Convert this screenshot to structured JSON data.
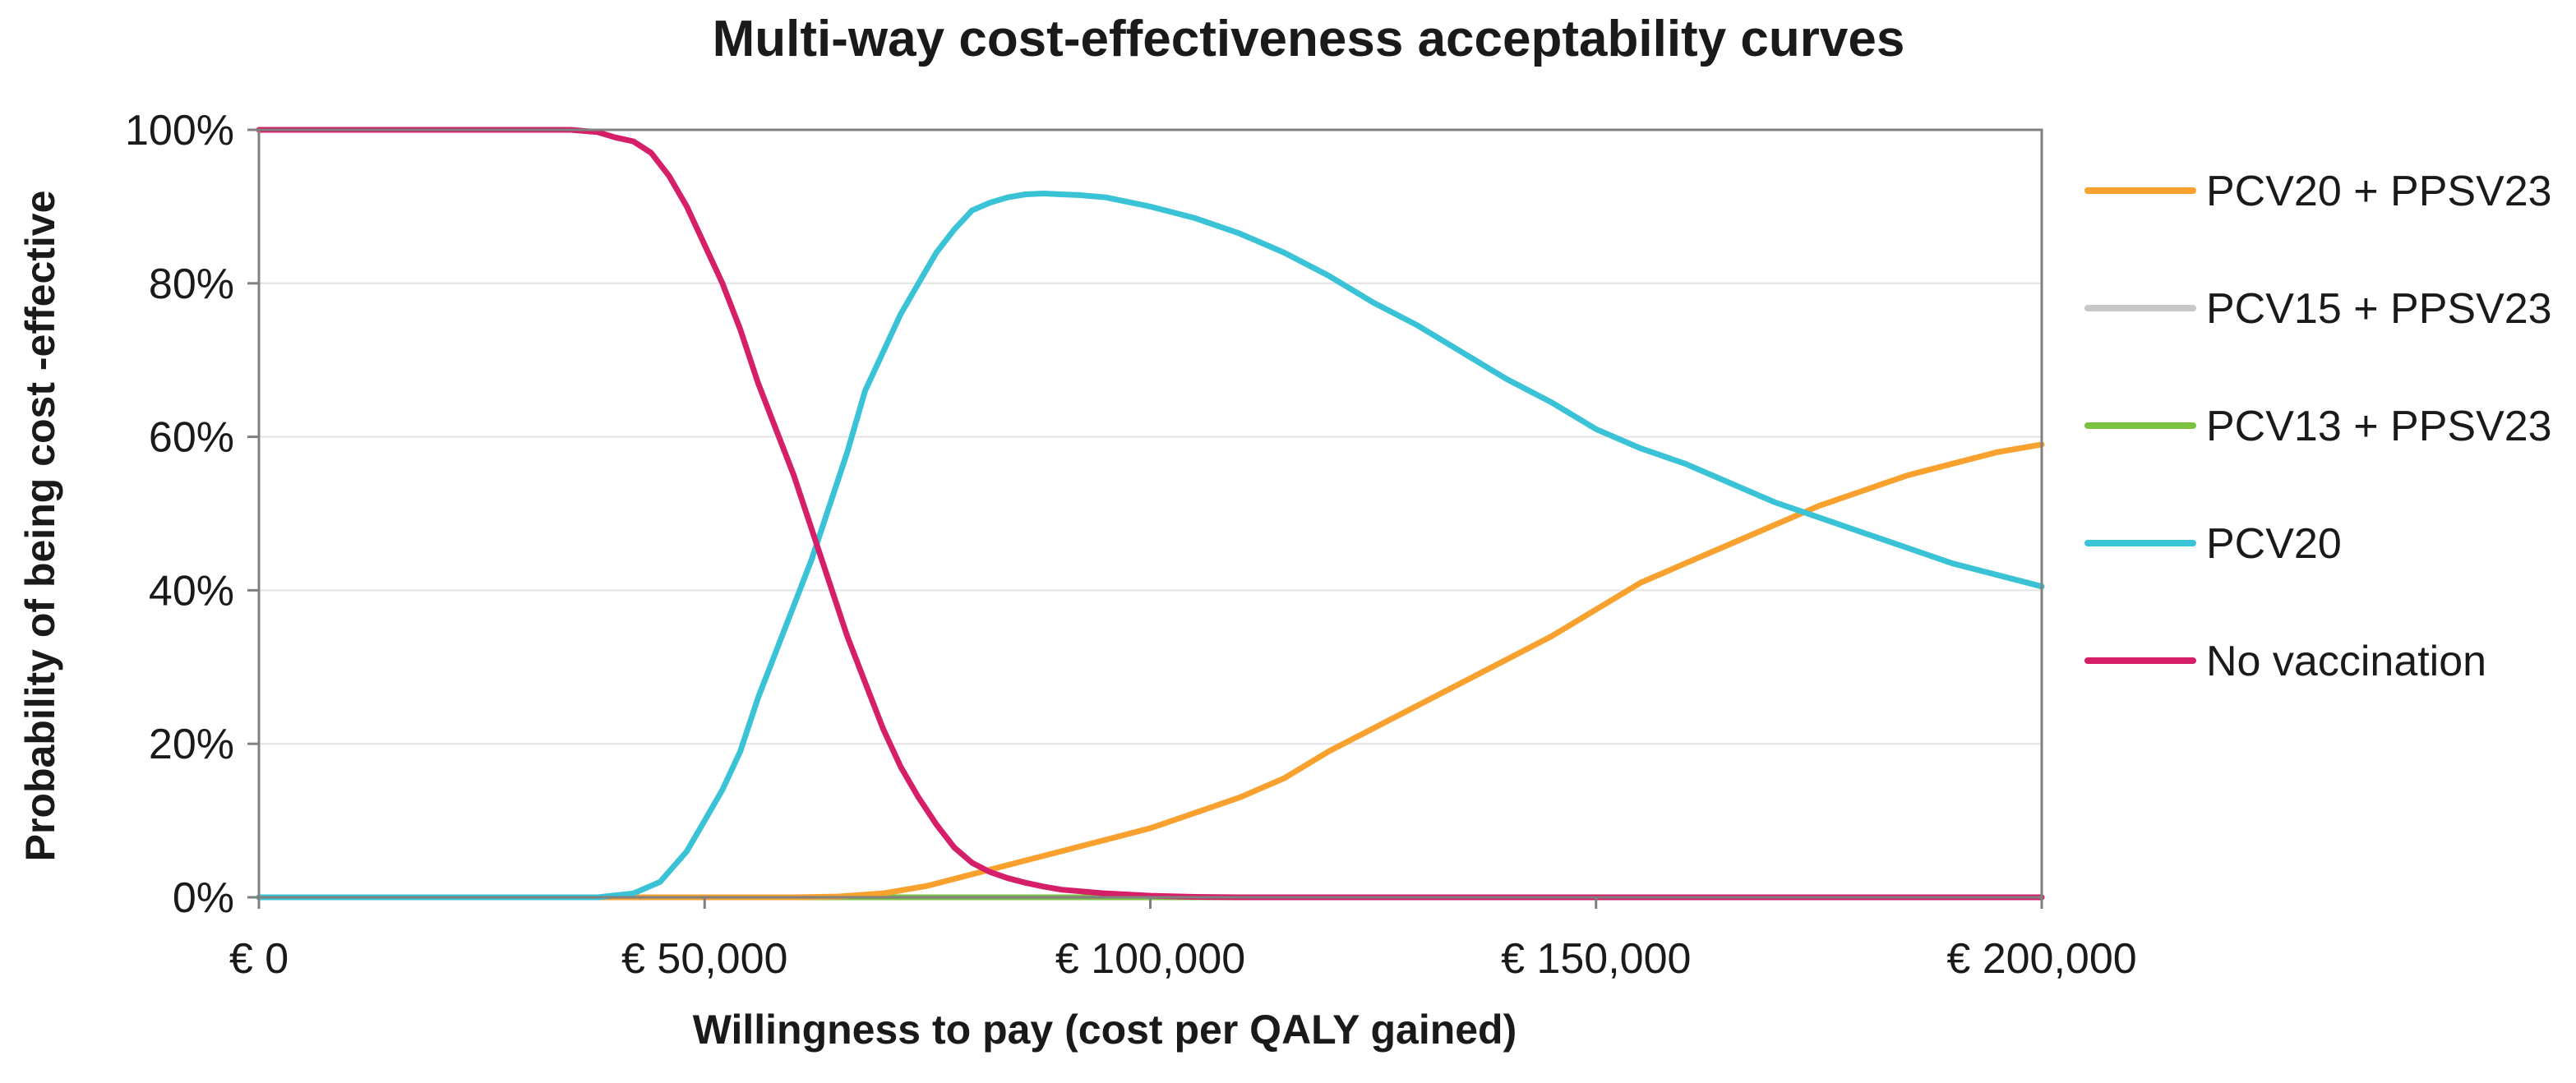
{
  "chart_data": {
    "type": "line",
    "title": "Multi-way cost-effectiveness acceptability curves",
    "xlabel": "Willingness to pay (cost per QALY gained)",
    "ylabel": "Probability of being cost  -effective",
    "xlim": [
      0,
      200000
    ],
    "ylim": [
      0,
      100
    ],
    "x_ticks": [
      0,
      50000,
      100000,
      150000,
      200000
    ],
    "x_tick_labels": [
      "€ 0",
      "€ 50,000",
      "€ 100,000",
      "€ 150,000",
      "€ 200,000"
    ],
    "y_ticks": [
      0,
      20,
      40,
      60,
      80,
      100
    ],
    "y_tick_labels": [
      "0%",
      "20%",
      "40%",
      "60%",
      "80%",
      "100%"
    ],
    "grid": "horizontal",
    "legend_position": "right",
    "series": [
      {
        "name": "PCV20 + PPSV23",
        "color": "#F9A12E",
        "points": [
          [
            0,
            0
          ],
          [
            60000,
            0
          ],
          [
            65000,
            0.1
          ],
          [
            70000,
            0.5
          ],
          [
            75000,
            1.5
          ],
          [
            80000,
            3
          ],
          [
            85000,
            4.5
          ],
          [
            90000,
            6
          ],
          [
            95000,
            7.5
          ],
          [
            100000,
            9
          ],
          [
            105000,
            11
          ],
          [
            110000,
            13
          ],
          [
            115000,
            15.5
          ],
          [
            120000,
            19
          ],
          [
            125000,
            22
          ],
          [
            130000,
            25
          ],
          [
            135000,
            28
          ],
          [
            140000,
            31
          ],
          [
            145000,
            34
          ],
          [
            150000,
            37.5
          ],
          [
            155000,
            41
          ],
          [
            160000,
            43.5
          ],
          [
            165000,
            46
          ],
          [
            170000,
            48.5
          ],
          [
            175000,
            51
          ],
          [
            180000,
            53
          ],
          [
            185000,
            55
          ],
          [
            190000,
            56.5
          ],
          [
            195000,
            58
          ],
          [
            200000,
            59
          ]
        ]
      },
      {
        "name": "PCV15 + PPSV23",
        "color": "#C8C8C8",
        "points": [
          [
            0,
            0
          ],
          [
            200000,
            0
          ]
        ]
      },
      {
        "name": "PCV13 + PPSV23",
        "color": "#7DC242",
        "points": [
          [
            0,
            0
          ],
          [
            200000,
            0
          ]
        ]
      },
      {
        "name": "PCV20",
        "color": "#3AC3D6",
        "points": [
          [
            0,
            0
          ],
          [
            38000,
            0
          ],
          [
            42000,
            0.5
          ],
          [
            45000,
            2
          ],
          [
            48000,
            6
          ],
          [
            50000,
            10
          ],
          [
            52000,
            14
          ],
          [
            54000,
            19
          ],
          [
            56000,
            26
          ],
          [
            58000,
            32
          ],
          [
            60000,
            38
          ],
          [
            62000,
            44
          ],
          [
            64000,
            51
          ],
          [
            66000,
            58
          ],
          [
            68000,
            66
          ],
          [
            70000,
            71
          ],
          [
            72000,
            76
          ],
          [
            74000,
            80
          ],
          [
            76000,
            84
          ],
          [
            78000,
            87
          ],
          [
            80000,
            89.5
          ],
          [
            82000,
            90.5
          ],
          [
            84000,
            91.2
          ],
          [
            86000,
            91.6
          ],
          [
            88000,
            91.7
          ],
          [
            90000,
            91.6
          ],
          [
            92000,
            91.5
          ],
          [
            95000,
            91.2
          ],
          [
            100000,
            90
          ],
          [
            105000,
            88.5
          ],
          [
            110000,
            86.5
          ],
          [
            115000,
            84
          ],
          [
            120000,
            81
          ],
          [
            125000,
            77.5
          ],
          [
            130000,
            74.5
          ],
          [
            135000,
            71
          ],
          [
            140000,
            67.5
          ],
          [
            145000,
            64.5
          ],
          [
            150000,
            61
          ],
          [
            155000,
            58.5
          ],
          [
            160000,
            56.5
          ],
          [
            165000,
            54
          ],
          [
            170000,
            51.5
          ],
          [
            175000,
            49.5
          ],
          [
            180000,
            47.5
          ],
          [
            185000,
            45.5
          ],
          [
            190000,
            43.5
          ],
          [
            195000,
            42
          ],
          [
            200000,
            40.5
          ]
        ]
      },
      {
        "name": "No vaccination",
        "color": "#D61F69",
        "points": [
          [
            0,
            100
          ],
          [
            35000,
            100
          ],
          [
            38000,
            99.7
          ],
          [
            40000,
            99
          ],
          [
            42000,
            98.5
          ],
          [
            44000,
            97
          ],
          [
            46000,
            94
          ],
          [
            48000,
            90
          ],
          [
            50000,
            85
          ],
          [
            52000,
            80
          ],
          [
            54000,
            74
          ],
          [
            56000,
            67
          ],
          [
            58000,
            61
          ],
          [
            60000,
            55
          ],
          [
            62000,
            48
          ],
          [
            64000,
            41
          ],
          [
            66000,
            34
          ],
          [
            68000,
            28
          ],
          [
            70000,
            22
          ],
          [
            72000,
            17
          ],
          [
            74000,
            13
          ],
          [
            76000,
            9.5
          ],
          [
            78000,
            6.5
          ],
          [
            80000,
            4.5
          ],
          [
            82000,
            3.3
          ],
          [
            84000,
            2.5
          ],
          [
            86000,
            1.9
          ],
          [
            88000,
            1.4
          ],
          [
            90000,
            1
          ],
          [
            95000,
            0.5
          ],
          [
            100000,
            0.2
          ],
          [
            105000,
            0.05
          ],
          [
            110000,
            0
          ],
          [
            200000,
            0
          ]
        ]
      }
    ]
  }
}
